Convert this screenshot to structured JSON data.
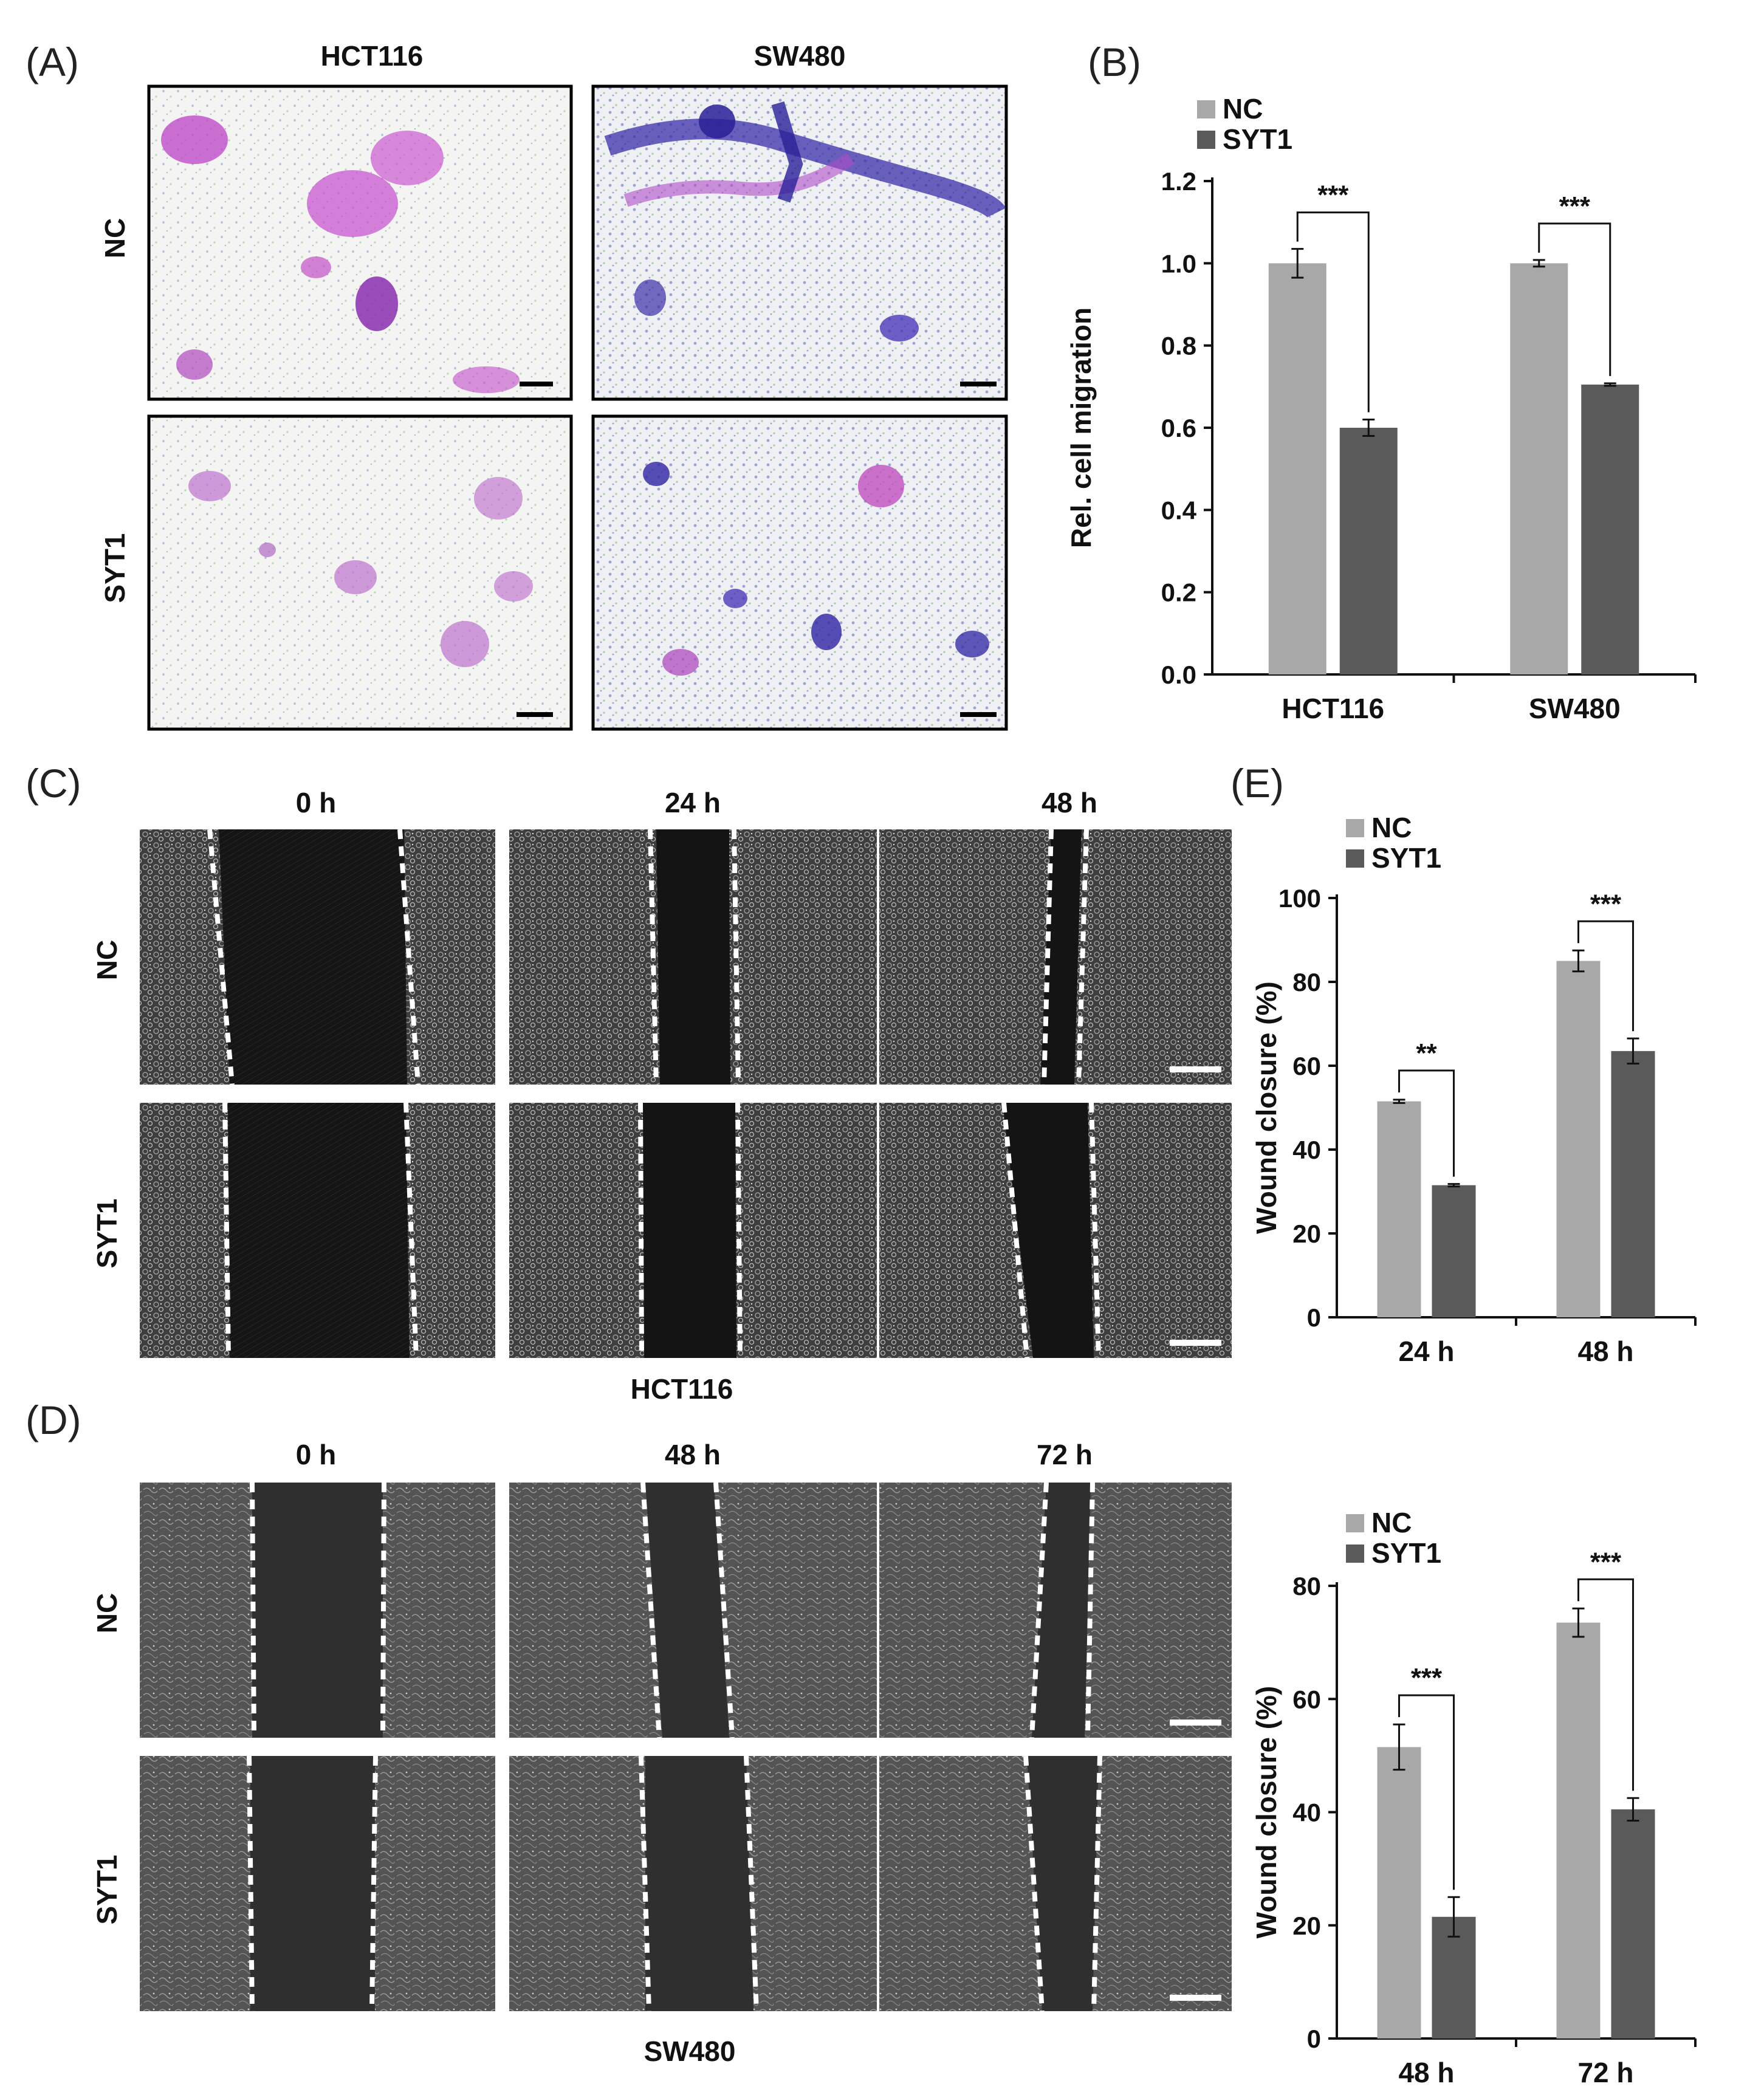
{
  "panels": {
    "A": {
      "label": "(A)",
      "columns": [
        "HCT116",
        "SW480"
      ],
      "rows": [
        "NC",
        "SYT1"
      ]
    },
    "C": {
      "label": "(C)",
      "columns": [
        "0 h",
        "24 h",
        "48 h"
      ],
      "rows": [
        "NC",
        "SYT1"
      ],
      "caption": "HCT116"
    },
    "D": {
      "label": "(D)",
      "columns": [
        "0 h",
        "48 h",
        "72 h"
      ],
      "rows": [
        "NC",
        "SYT1"
      ],
      "caption": "SW480"
    }
  },
  "colors": {
    "NC": "#a8a8a8",
    "SYT1": "#5a5a5a"
  },
  "chart_data": [
    {
      "panel": "(B)",
      "type": "bar",
      "categories": [
        "HCT116",
        "SW480"
      ],
      "series": [
        {
          "name": "NC",
          "values": [
            1.0,
            1.0
          ],
          "errors": [
            0.035,
            0.008
          ]
        },
        {
          "name": "SYT1",
          "values": [
            0.6,
            0.705
          ],
          "errors": [
            0.02,
            0.003
          ]
        }
      ],
      "significance": [
        "***",
        "***"
      ],
      "ylabel": "Rel. cell  migration",
      "ylim": [
        0,
        1.2
      ],
      "yticks": [
        "0.0",
        "0.2",
        "0.4",
        "0.6",
        "0.8",
        "1.0",
        "1.2"
      ],
      "legend": "top-left"
    },
    {
      "panel": "(E)",
      "type": "bar",
      "categories": [
        "24 h",
        "48 h"
      ],
      "series": [
        {
          "name": "NC",
          "values": [
            51.5,
            85
          ],
          "errors": [
            0.4,
            2.5
          ]
        },
        {
          "name": "SYT1",
          "values": [
            31.5,
            63.5
          ],
          "errors": [
            0.3,
            3
          ]
        }
      ],
      "significance": [
        "**",
        "***"
      ],
      "ylabel": "Wound closure (%)",
      "ylim": [
        0,
        100
      ],
      "yticks": [
        "0",
        "20",
        "40",
        "60",
        "80",
        "100"
      ],
      "legend": "top-left"
    },
    {
      "panel": "",
      "type": "bar",
      "categories": [
        "48 h",
        "72 h"
      ],
      "series": [
        {
          "name": "NC",
          "values": [
            51.5,
            73.5
          ],
          "errors": [
            4,
            2.5
          ]
        },
        {
          "name": "SYT1",
          "values": [
            21.5,
            40.5
          ],
          "errors": [
            3.5,
            2
          ]
        }
      ],
      "significance": [
        "***",
        "***"
      ],
      "ylabel": "Wound closure (%)",
      "ylim": [
        0,
        80
      ],
      "yticks": [
        "0",
        "20",
        "40",
        "60",
        "80"
      ],
      "legend": "top-left"
    }
  ]
}
